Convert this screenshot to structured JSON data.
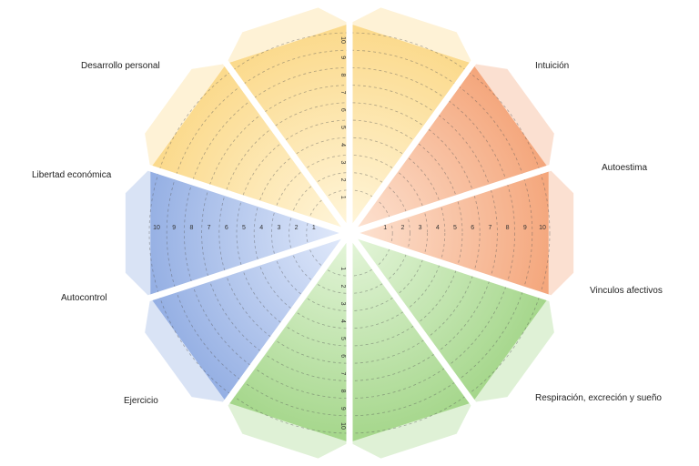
{
  "wheel": {
    "scale": [
      "1",
      "2",
      "3",
      "4",
      "5",
      "6",
      "7",
      "8",
      "9",
      "10"
    ],
    "segments": [
      {
        "id": "intuicion",
        "label": "Intuición",
        "group": "yellow"
      },
      {
        "id": "autoestima",
        "label": "Autoestima",
        "group": "orange"
      },
      {
        "id": "vinculos-afectivos",
        "label": "Vinculos afectivos",
        "group": "orange"
      },
      {
        "id": "respiracion",
        "label": "Respiración, excreción y sueño",
        "group": "green"
      },
      {
        "id": "ejercicio-b",
        "label": "",
        "group": "green"
      },
      {
        "id": "ejercicio",
        "label": "Ejercicio",
        "group": "green"
      },
      {
        "id": "autocontrol",
        "label": "Autocontrol",
        "group": "blue"
      },
      {
        "id": "libertad-economica",
        "label": "Libertad económica",
        "group": "blue"
      },
      {
        "id": "desarrollo-personal",
        "label": "Desarrollo personal",
        "group": "yellow"
      },
      {
        "id": "desarrollo-personal-b",
        "label": "",
        "group": "yellow"
      }
    ],
    "colors": {
      "yellow": "#fbd98a",
      "orange": "#f4a57a",
      "green": "#a4d68a",
      "blue": "#93aee3"
    }
  }
}
